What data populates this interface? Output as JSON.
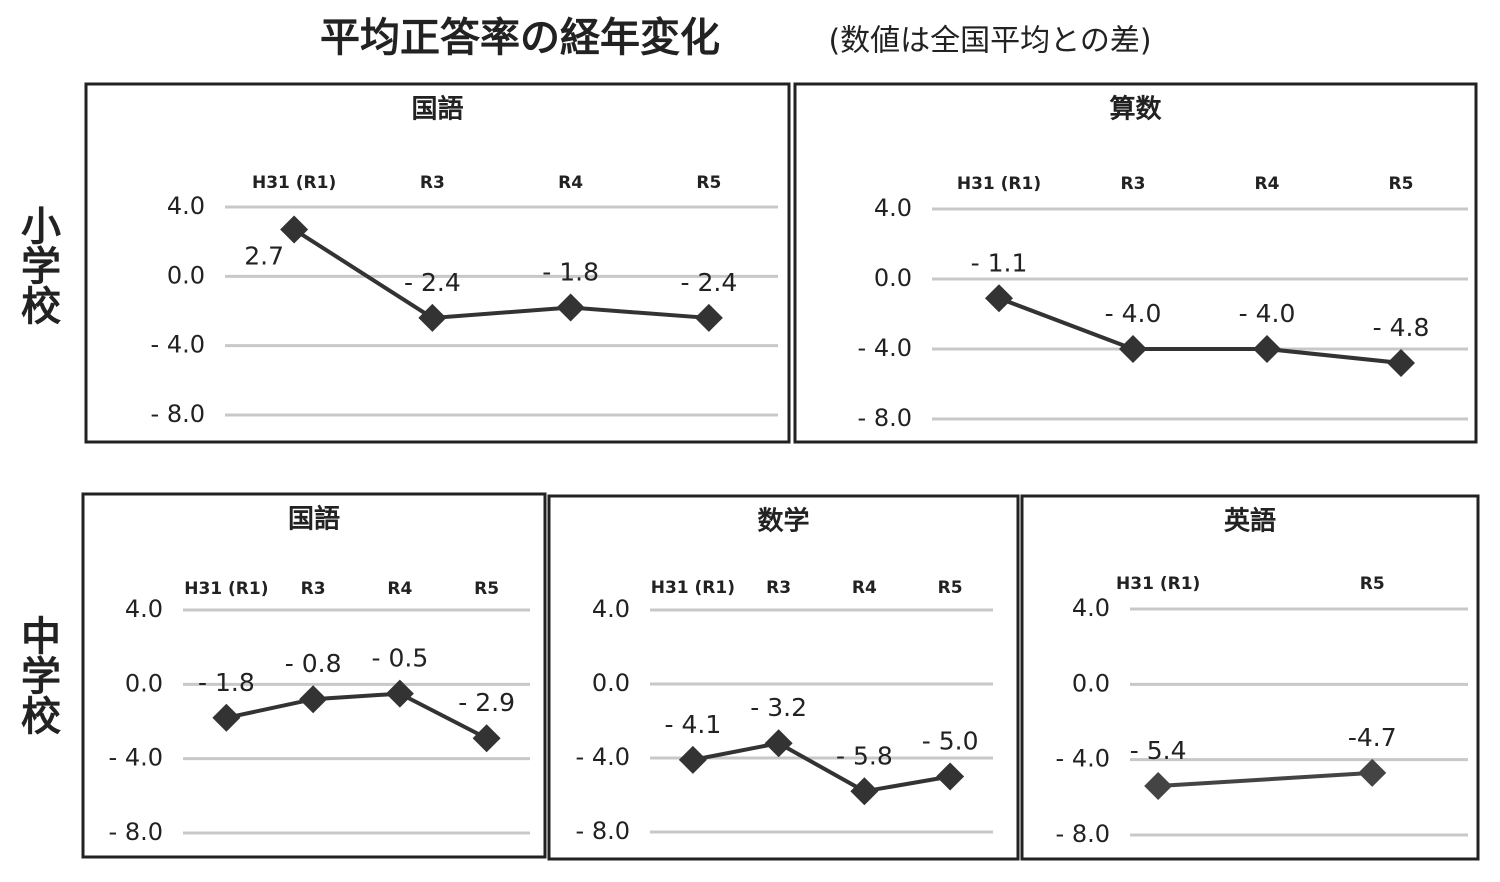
{
  "title": "平均正答率の経年変化",
  "subtitle": "(数値は全国平均との差)",
  "rows": [
    "小学校",
    "中学校"
  ],
  "chart_data": [
    {
      "type": "line",
      "title": "国語",
      "categories": [
        "H31 (R1)",
        "R3",
        "R4",
        "R5"
      ],
      "values": [
        2.7,
        -2.4,
        -1.8,
        -2.4
      ],
      "value_labels": [
        "2.7",
        "- 2.4",
        "- 1.8",
        "- 2.4"
      ],
      "color": "#333333",
      "ylim": [
        -8,
        4
      ],
      "yticks": [
        {
          "value": 4,
          "label": "4.0"
        },
        {
          "value": 0,
          "label": "0.0"
        },
        {
          "value": -4,
          "label": "- 4.0"
        },
        {
          "value": -8,
          "label": "- 8.0"
        }
      ],
      "grid": true
    },
    {
      "type": "line",
      "title": "算数",
      "categories": [
        "H31 (R1)",
        "R3",
        "R4",
        "R5"
      ],
      "values": [
        -1.1,
        -4.0,
        -4.0,
        -4.8
      ],
      "value_labels": [
        "- 1.1",
        "- 4.0",
        "- 4.0",
        "- 4.8"
      ],
      "color": "#333333",
      "ylim": [
        -8,
        4
      ],
      "yticks": [
        {
          "value": 4,
          "label": "4.0"
        },
        {
          "value": 0,
          "label": "0.0"
        },
        {
          "value": -4,
          "label": "- 4.0"
        },
        {
          "value": -8,
          "label": "- 8.0"
        }
      ],
      "grid": true
    },
    {
      "type": "line",
      "title": "国語",
      "categories": [
        "H31 (R1)",
        "R3",
        "R4",
        "R5"
      ],
      "values": [
        -1.8,
        -0.8,
        -0.5,
        -2.9
      ],
      "value_labels": [
        "- 1.8",
        "- 0.8",
        "- 0.5",
        "- 2.9"
      ],
      "color": "#333333",
      "ylim": [
        -8,
        4
      ],
      "yticks": [
        {
          "value": 4,
          "label": "4.0"
        },
        {
          "value": 0,
          "label": "0.0"
        },
        {
          "value": -4,
          "label": "- 4.0"
        },
        {
          "value": -8,
          "label": "- 8.0"
        }
      ],
      "grid": true
    },
    {
      "type": "line",
      "title": "数学",
      "categories": [
        "H31 (R1)",
        "R3",
        "R4",
        "R5"
      ],
      "values": [
        -4.1,
        -3.2,
        -5.8,
        -5.0
      ],
      "value_labels": [
        "- 4.1",
        "- 3.2",
        "- 5.8",
        "- 5.0"
      ],
      "color": "#333333",
      "ylim": [
        -8,
        4
      ],
      "yticks": [
        {
          "value": 4,
          "label": "4.0"
        },
        {
          "value": 0,
          "label": "0.0"
        },
        {
          "value": -4,
          "label": "- 4.0"
        },
        {
          "value": -8,
          "label": "- 8.0"
        }
      ],
      "grid": true
    },
    {
      "type": "line",
      "title": "英語",
      "categories": [
        "H31 (R1)",
        "R5"
      ],
      "values": [
        -5.4,
        -4.7
      ],
      "value_labels": [
        "- 5.4",
        "-4.7"
      ],
      "color": "#444444",
      "ylim": [
        -8,
        4
      ],
      "yticks": [
        {
          "value": 4,
          "label": "4.0"
        },
        {
          "value": 0,
          "label": "0.0"
        },
        {
          "value": -4,
          "label": "- 4.0"
        },
        {
          "value": -8,
          "label": "- 8.0"
        }
      ],
      "grid": true
    }
  ]
}
